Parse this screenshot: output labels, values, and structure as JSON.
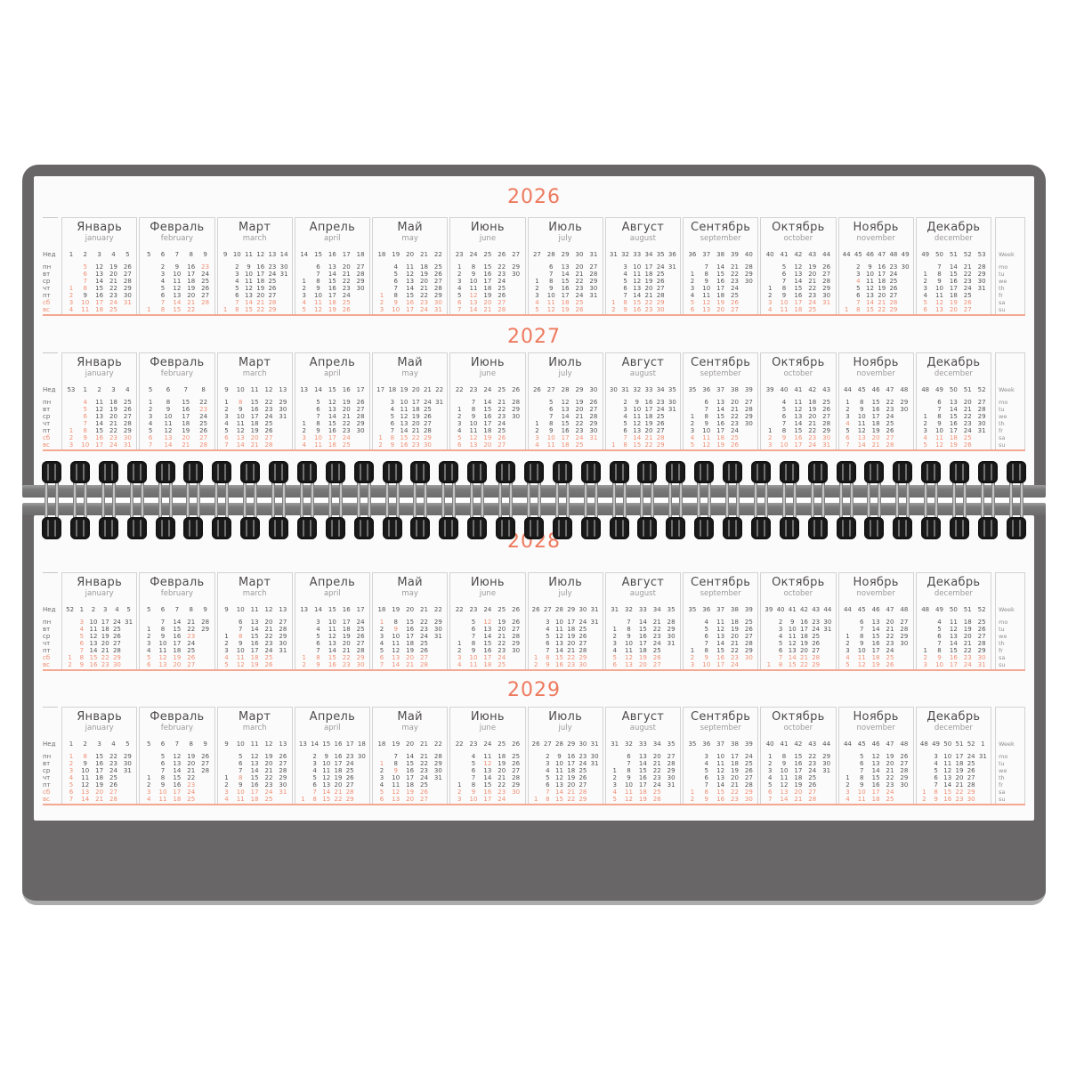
{
  "scene": {
    "type": "desk-flip-calendar",
    "orientation": "landscape"
  },
  "binding": {
    "coil_count": 35,
    "coil_color": "#1b1b1b",
    "bar_color": "#7a7a7a"
  },
  "pages": [
    {
      "position": "top",
      "years": [
        2026,
        2027
      ]
    },
    {
      "position": "bottom",
      "years": [
        2028,
        2029
      ]
    }
  ],
  "calendar": {
    "years": [
      2026,
      2027,
      2028,
      2029
    ],
    "week_header_ru": "Нед",
    "week_header_en": "Week",
    "weekdays_ru": [
      "пн",
      "вт",
      "ср",
      "чт",
      "пт",
      "сб",
      "вс"
    ],
    "weekdays_en": [
      "mo",
      "tu",
      "we",
      "th",
      "fr",
      "sa",
      "su"
    ],
    "months": [
      {
        "ru": "Январь",
        "en": "january"
      },
      {
        "ru": "Февраль",
        "en": "february"
      },
      {
        "ru": "Март",
        "en": "march"
      },
      {
        "ru": "Апрель",
        "en": "april"
      },
      {
        "ru": "Май",
        "en": "may"
      },
      {
        "ru": "Июнь",
        "en": "june"
      },
      {
        "ru": "Июль",
        "en": "july"
      },
      {
        "ru": "Август",
        "en": "august"
      },
      {
        "ru": "Сентябрь",
        "en": "september"
      },
      {
        "ru": "Октябрь",
        "en": "october"
      },
      {
        "ru": "Ноябрь",
        "en": "november"
      },
      {
        "ru": "Декабрь",
        "en": "december"
      }
    ],
    "week_start": "monday",
    "week_numbering": "iso",
    "holidays_red": [
      [
        1,
        1
      ],
      [
        1,
        2
      ],
      [
        1,
        3
      ],
      [
        1,
        4
      ],
      [
        1,
        5
      ],
      [
        1,
        6
      ],
      [
        1,
        7
      ],
      [
        1,
        8
      ],
      [
        2,
        23
      ],
      [
        3,
        8
      ],
      [
        5,
        1
      ],
      [
        5,
        9
      ],
      [
        6,
        12
      ],
      [
        11,
        4
      ]
    ],
    "weekend_rows_red": [
      5,
      6
    ]
  },
  "palette": {
    "board_gray": "#686666",
    "board_bottom_edge": "#ababab",
    "page_white": "#fcfbfb",
    "accent_salmon_year": "#ed7a5e",
    "accent_salmon_day": "#ee8f74",
    "strip_underline": "#f3a892",
    "text_dark": "#4e4c4c",
    "text_day": "#555353",
    "text_sub": "#9b9999",
    "border_light": "#d4d2d2"
  }
}
